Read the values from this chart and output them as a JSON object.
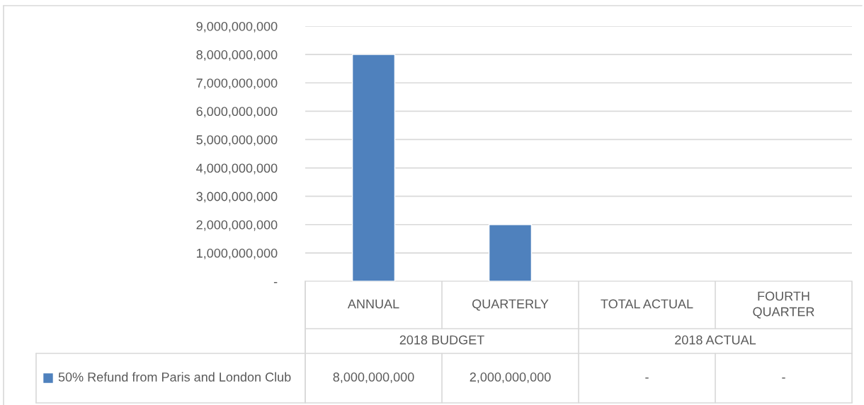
{
  "chart_data": {
    "type": "bar",
    "categories": [
      "ANNUAL",
      "QUARTERLY",
      "TOTAL ACTUAL",
      "FOURTH QUARTER"
    ],
    "series": [
      {
        "name": "50% Refund from Paris and London Club",
        "color": "#4f81bd",
        "values": [
          8000000000,
          2000000000,
          null,
          null
        ],
        "value_labels": [
          "8,000,000,000",
          "2,000,000,000",
          "-",
          "-"
        ]
      }
    ],
    "annotations": [
      "2018 BUDGET",
      "2018 ACTUAL"
    ],
    "ylim": [
      0,
      9000000000
    ],
    "yticks": [
      {
        "value": 0,
        "label": "-"
      },
      {
        "value": 1000000000,
        "label": "1,000,000,000"
      },
      {
        "value": 2000000000,
        "label": "2,000,000,000"
      },
      {
        "value": 3000000000,
        "label": "3,000,000,000"
      },
      {
        "value": 4000000000,
        "label": "4,000,000,000"
      },
      {
        "value": 5000000000,
        "label": "5,000,000,000"
      },
      {
        "value": 6000000000,
        "label": "6,000,000,000"
      },
      {
        "value": 7000000000,
        "label": "7,000,000,000"
      },
      {
        "value": 8000000000,
        "label": "8,000,000,000"
      },
      {
        "value": 9000000000,
        "label": "9,000,000,000"
      }
    ],
    "grid": "y",
    "legend": "bottom left"
  }
}
